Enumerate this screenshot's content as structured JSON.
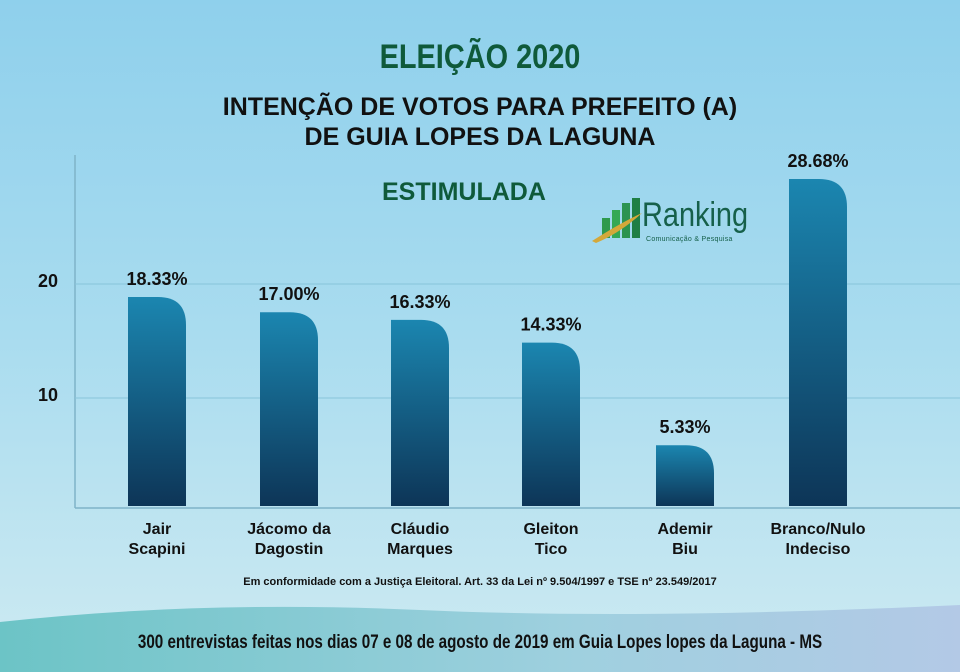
{
  "title": "ELEIÇÃO 2020",
  "subtitle_line1": "INTENÇÃO DE VOTOS PARA PREFEITO (A)",
  "subtitle_line2": "DE GUIA LOPES DA LAGUNA",
  "poll_type": "ESTIMULADA",
  "logo": {
    "name": "Ranking",
    "tagline": "Comunicação & Pesquisa"
  },
  "note": "Em conformidade com a Justiça Eleitoral. Art. 33 da Lei nº 9.504/1997 e TSE nº 23.549/2017",
  "footer": "300 entrevistas feitas nos dias 07 e 08 de agosto de 2019 em Guia Lopes lopes da Laguna - MS",
  "colors": {
    "bar_top": "#1b86b0",
    "bar_bottom": "#0d3557",
    "title": "#0f5a3a"
  },
  "chart_data": {
    "type": "bar",
    "categories": [
      [
        "Jair",
        "Scapini"
      ],
      [
        "Jácomo da",
        "Dagostin"
      ],
      [
        "Cláudio",
        "Marques"
      ],
      [
        "Gleiton",
        "Tico"
      ],
      [
        "Ademir",
        "Biu"
      ],
      [
        "Branco/Nulo",
        "Indeciso"
      ]
    ],
    "values": [
      18.33,
      17.0,
      16.33,
      14.33,
      5.33,
      28.68
    ],
    "data_labels": [
      "18.33%",
      "17.00%",
      "16.33%",
      "14.33%",
      "5.33%",
      "28.68%"
    ],
    "yticks": [
      10,
      20
    ],
    "ylim": [
      0,
      31
    ],
    "grid": true,
    "legend": "none"
  }
}
